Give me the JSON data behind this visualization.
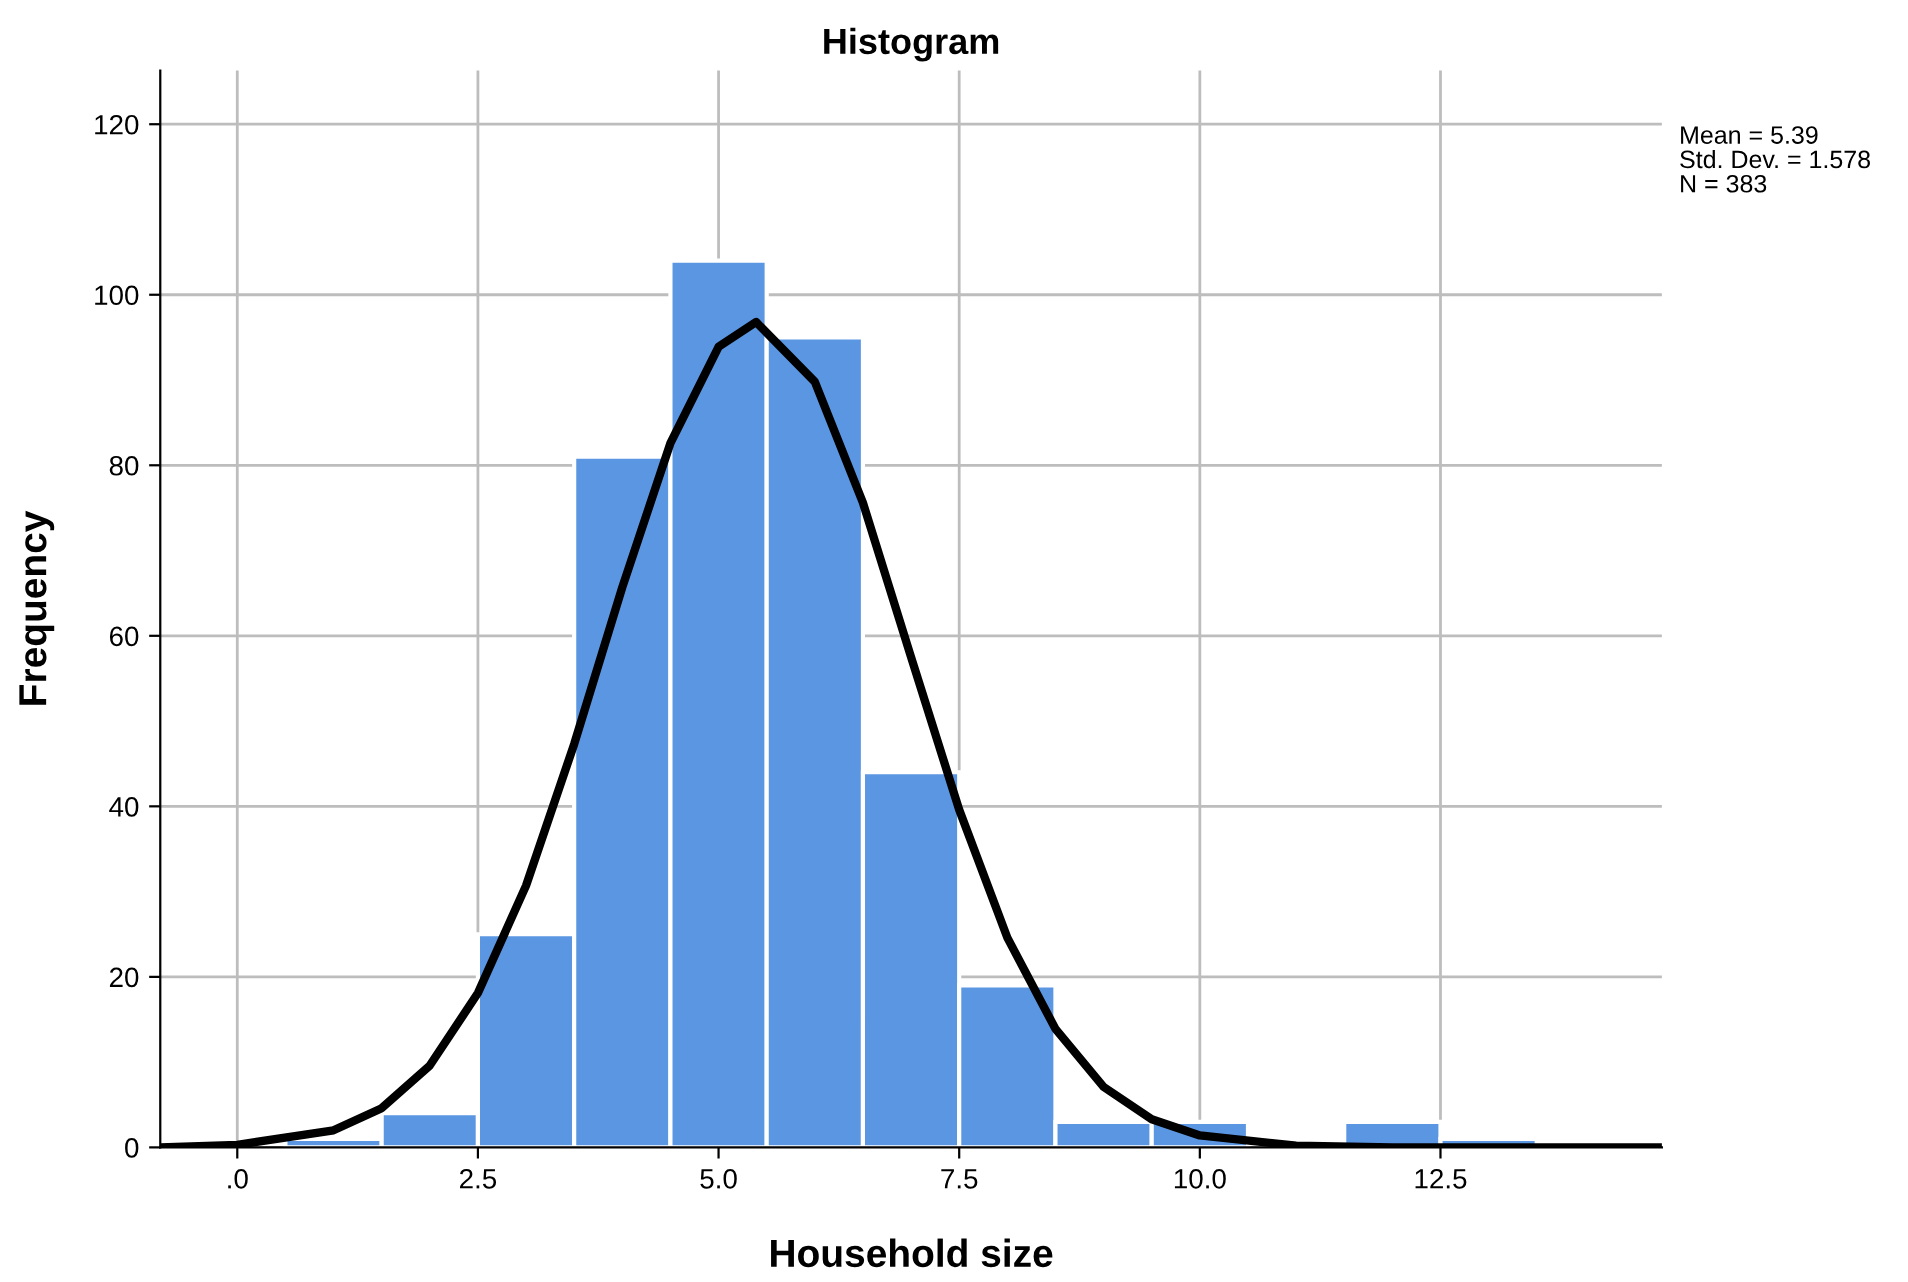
{
  "chart_data": {
    "type": "histogram",
    "title": "Histogram",
    "xlabel": "Household size",
    "ylabel": "Frequency",
    "bins": [
      0.5,
      1.5,
      2.5,
      3.5,
      4.5,
      5.5,
      6.5,
      7.5,
      8.5,
      9.5,
      10.5,
      11.5,
      12.5,
      13.5
    ],
    "values": [
      1,
      4,
      25,
      81,
      104,
      95,
      44,
      19,
      3,
      3,
      0,
      3,
      1
    ],
    "color": "#5b96e3",
    "series": [
      {
        "type": "line",
        "color": "#000000",
        "x": [
          -0.8,
          0,
          1,
          1.5,
          2,
          2.5,
          3,
          3.5,
          4,
          4.5,
          5,
          5.39,
          6,
          6.5,
          7,
          7.5,
          8,
          8.5,
          9,
          9.5,
          10,
          11,
          12,
          14.8
        ],
        "values": [
          0.0,
          0.3,
          2.0,
          4.6,
          9.6,
          18.1,
          30.7,
          47.3,
          65.7,
          82.6,
          93.9,
          96.8,
          89.8,
          75.6,
          57.5,
          39.6,
          24.6,
          13.9,
          7.1,
          3.3,
          1.4,
          0.2,
          0.0,
          0.0
        ]
      }
    ],
    "xlim": [
      -0.8,
      14.8
    ],
    "ylim": [
      0,
      126.3
    ],
    "xticks": [
      {
        "value": 0,
        "label": ".0"
      },
      2.5,
      {
        "value": 5,
        "label": "5.0"
      },
      7.5,
      {
        "value": 10,
        "label": "10.0"
      },
      12.5
    ],
    "yticks": [
      0,
      20,
      40,
      60,
      80,
      100,
      120
    ],
    "grid": true,
    "annotations": [
      "Mean = 5.39",
      "Std. Dev. = 1.578",
      "N = 383"
    ]
  }
}
